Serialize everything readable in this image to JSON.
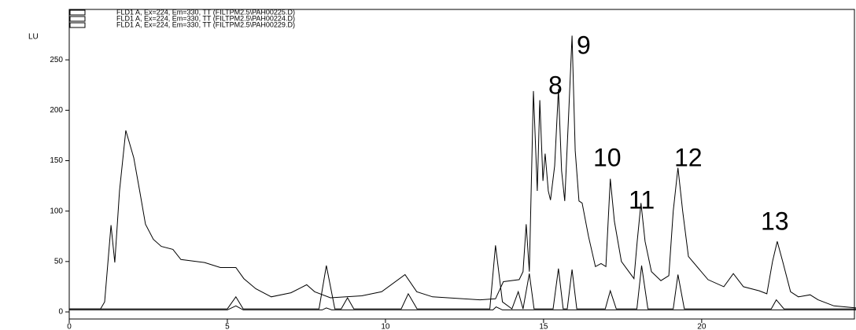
{
  "chart_data": {
    "type": "line",
    "y_label": "LU",
    "xlim": [
      0,
      24.88
    ],
    "ylim": [
      0,
      300
    ],
    "xticks": [
      0,
      5,
      10,
      15,
      20
    ],
    "yticks": [
      0,
      50,
      100,
      150,
      200,
      250
    ],
    "series": [
      {
        "name": "FLD1 A, Ex=224, Em=330, TT (FILTPM2.5\\PAH00225.D)",
        "color": "#000000",
        "x": [
          0,
          0.99,
          1.12,
          1.32,
          1.44,
          1.59,
          1.79,
          2.04,
          2.24,
          2.41,
          2.66,
          2.91,
          3.28,
          3.53,
          4.28,
          4.78,
          5.27,
          5.52,
          5.9,
          6.39,
          7.01,
          7.51,
          7.76,
          8.26,
          9.25,
          9.88,
          10.62,
          10.99,
          11.49,
          12.99,
          13.48,
          13.73,
          14.23,
          14.35,
          14.45,
          14.55,
          14.68,
          14.8,
          14.88,
          14.98,
          15.05,
          15.15,
          15.22,
          15.35,
          15.47,
          15.57,
          15.67,
          15.8,
          15.9,
          16.0,
          16.12,
          16.22,
          16.42,
          16.64,
          16.82,
          16.97,
          17.11,
          17.24,
          17.46,
          17.86,
          17.96,
          18.08,
          18.21,
          18.41,
          18.71,
          18.96,
          19.1,
          19.25,
          19.4,
          19.58,
          20.2,
          20.7,
          21.0,
          21.32,
          21.82,
          22.06,
          22.24,
          22.39,
          22.56,
          22.81,
          23.06,
          23.43,
          23.68,
          24.18,
          24.88
        ],
        "values": [
          3,
          3,
          10,
          86,
          49,
          120,
          180,
          153,
          118,
          87,
          72,
          65,
          62,
          52,
          49,
          44,
          44,
          33,
          23,
          15,
          19,
          27,
          20,
          14,
          16,
          20,
          37,
          20,
          15,
          12,
          13,
          30,
          32,
          40,
          87,
          40,
          219,
          120,
          210,
          130,
          157,
          120,
          111,
          145,
          221,
          140,
          110,
          200,
          274,
          160,
          110,
          108,
          75,
          45,
          48,
          45,
          132,
          90,
          50,
          33,
          70,
          108,
          70,
          40,
          31,
          36,
          100,
          143,
          100,
          55,
          32,
          25,
          38,
          25,
          21,
          18,
          50,
          70,
          50,
          20,
          15,
          17,
          12,
          6,
          4
        ]
      },
      {
        "name": "FLD1 A, Ex=224, Em=330, TT (FILTPM2.5\\PAH00224.D)",
        "color": "#000000",
        "x": [
          0,
          5.0,
          5.27,
          5.5,
          7.9,
          8.13,
          8.4,
          8.6,
          8.8,
          9.0,
          10.5,
          10.72,
          11.0,
          13.3,
          13.48,
          13.7,
          14.0,
          14.2,
          14.35,
          14.55,
          14.7,
          15.3,
          15.47,
          15.62,
          15.75,
          15.9,
          16.05,
          16.95,
          17.11,
          17.3,
          17.95,
          18.1,
          18.3,
          19.1,
          19.25,
          19.45,
          22.2,
          22.36,
          22.6,
          24.88
        ],
        "values": [
          3,
          3,
          15,
          3,
          3,
          46,
          3,
          3,
          14,
          3,
          3,
          18,
          3,
          3,
          66,
          10,
          3,
          20,
          3,
          38,
          3,
          3,
          43,
          3,
          3,
          42,
          3,
          3,
          21,
          3,
          3,
          46,
          3,
          3,
          37,
          3,
          3,
          12,
          3,
          3
        ]
      },
      {
        "name": "FLD1 A, Ex=224, Em=330, TT (FILTPM2.5\\PAH00229.D)",
        "color": "#000000",
        "x": [
          0,
          5.0,
          5.27,
          5.5,
          8.0,
          8.13,
          8.3,
          13.4,
          13.5,
          13.7,
          24.88
        ],
        "values": [
          2,
          2,
          6,
          2,
          2,
          4,
          2,
          2,
          5,
          2,
          2
        ]
      }
    ],
    "annotations": [
      "8",
      "9",
      "10",
      "11",
      "12",
      "13"
    ]
  }
}
